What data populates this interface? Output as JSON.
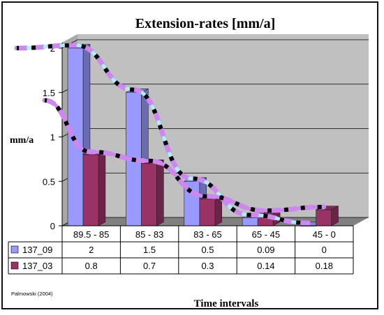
{
  "chart_data": {
    "type": "bar",
    "title": "Extension-rates [mm/a]",
    "ylabel": "mm/a",
    "xlabel": "Time intervals",
    "categories": [
      "89.5 - 85",
      "85 - 83",
      "83 - 65",
      "65 - 45",
      "45 - 0"
    ],
    "series": [
      {
        "name": "137_09",
        "values": [
          2,
          1.5,
          0.5,
          0.09,
          0
        ],
        "color": "#9999ff"
      },
      {
        "name": "137_03",
        "values": [
          0.8,
          0.7,
          0.3,
          0.14,
          0.18
        ],
        "color": "#993366"
      }
    ],
    "value_labels": [
      [
        "2",
        "1.5",
        "0.5",
        "0.09",
        "0"
      ],
      [
        "0.8",
        "0.7",
        "0.3",
        "0.14",
        "0.18"
      ]
    ],
    "ylim": [
      0,
      2
    ],
    "yticks": [
      "0",
      "0.5",
      "1",
      "1.5",
      "2"
    ],
    "grid": true,
    "legend": "data-table",
    "credit": "Palmowski (2004)",
    "colors": {
      "plot_wall": "#c0c0c0",
      "plot_floor": "#808080",
      "trend_a": "#cc88ee",
      "trend_b": "#aaeeff",
      "trend_dash": "#000000"
    }
  }
}
